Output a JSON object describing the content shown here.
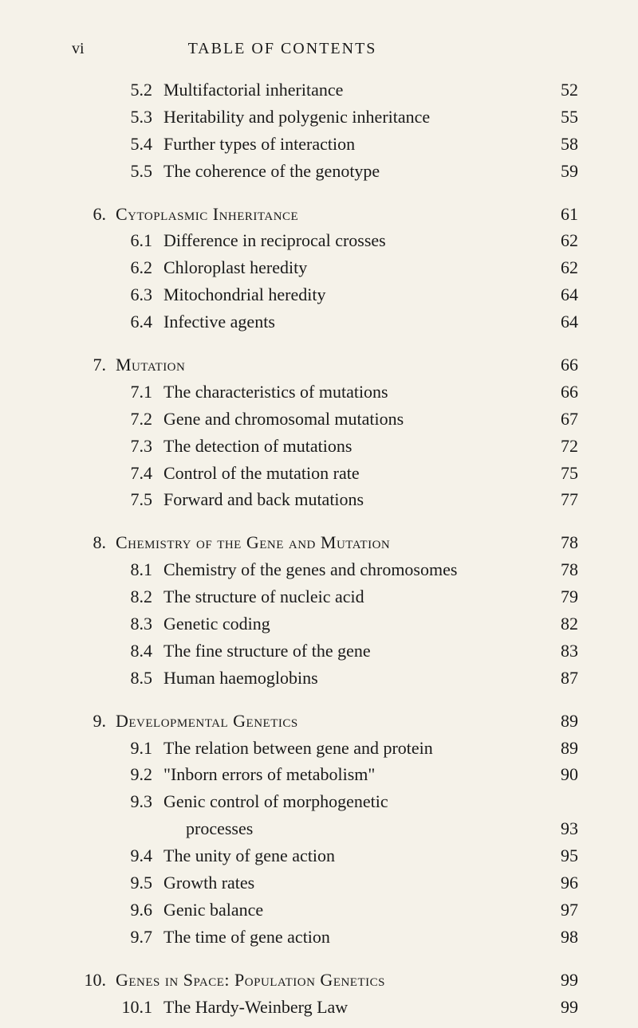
{
  "header": {
    "page_number": "vi",
    "title": "TABLE OF CONTENTS"
  },
  "blocks": [
    {
      "chapter_num": "",
      "chapter_title": "",
      "chapter_page": "",
      "sections": [
        {
          "num": "5.2",
          "title": "Multifactorial inheritance",
          "page": "52"
        },
        {
          "num": "5.3",
          "title": "Heritability and polygenic inheritance",
          "page": "55"
        },
        {
          "num": "5.4",
          "title": "Further types of interaction",
          "page": "58"
        },
        {
          "num": "5.5",
          "title": "The coherence of the genotype",
          "page": "59"
        }
      ]
    },
    {
      "chapter_num": "6.",
      "chapter_title": "Cytoplasmic Inheritance",
      "chapter_page": "61",
      "sections": [
        {
          "num": "6.1",
          "title": "Difference in reciprocal crosses",
          "page": "62"
        },
        {
          "num": "6.2",
          "title": "Chloroplast heredity",
          "page": "62"
        },
        {
          "num": "6.3",
          "title": "Mitochondrial heredity",
          "page": "64"
        },
        {
          "num": "6.4",
          "title": "Infective agents",
          "page": "64"
        }
      ]
    },
    {
      "chapter_num": "7.",
      "chapter_title": "Mutation",
      "chapter_page": "66",
      "sections": [
        {
          "num": "7.1",
          "title": "The characteristics of mutations",
          "page": "66"
        },
        {
          "num": "7.2",
          "title": "Gene and chromosomal mutations",
          "page": "67"
        },
        {
          "num": "7.3",
          "title": "The detection of mutations",
          "page": "72"
        },
        {
          "num": "7.4",
          "title": "Control of the mutation rate",
          "page": "75"
        },
        {
          "num": "7.5",
          "title": "Forward and back mutations",
          "page": "77"
        }
      ]
    },
    {
      "chapter_num": "8.",
      "chapter_title": "Chemistry of the Gene and Mutation",
      "chapter_page": "78",
      "sections": [
        {
          "num": "8.1",
          "title": "Chemistry of the genes and chromosomes",
          "page": "78"
        },
        {
          "num": "8.2",
          "title": "The structure of nucleic acid",
          "page": "79"
        },
        {
          "num": "8.3",
          "title": "Genetic coding",
          "page": "82"
        },
        {
          "num": "8.4",
          "title": "The fine structure of the gene",
          "page": "83"
        },
        {
          "num": "8.5",
          "title": "Human haemoglobins",
          "page": "87"
        }
      ]
    },
    {
      "chapter_num": "9.",
      "chapter_title": "Developmental Genetics",
      "chapter_page": "89",
      "sections": [
        {
          "num": "9.1",
          "title": "The relation between gene and protein",
          "page": "89"
        },
        {
          "num": "9.2",
          "title": "\"Inborn errors of metabolism\"",
          "page": "90"
        },
        {
          "num": "9.3",
          "title": "Genic control of morphogenetic",
          "page": ""
        },
        {
          "num": "",
          "title": "   processes",
          "page": "93",
          "continuation": true
        },
        {
          "num": "9.4",
          "title": "The unity of gene action",
          "page": "95"
        },
        {
          "num": "9.5",
          "title": "Growth rates",
          "page": "96"
        },
        {
          "num": "9.6",
          "title": "Genic balance",
          "page": "97"
        },
        {
          "num": "9.7",
          "title": "The time of gene action",
          "page": "98"
        }
      ]
    },
    {
      "chapter_num": "10.",
      "chapter_title": "Genes in Space: Population Genetics",
      "chapter_page": "99",
      "sections": [
        {
          "num": "10.1",
          "title": "The Hardy-Weinberg Law",
          "page": "99"
        }
      ]
    }
  ]
}
